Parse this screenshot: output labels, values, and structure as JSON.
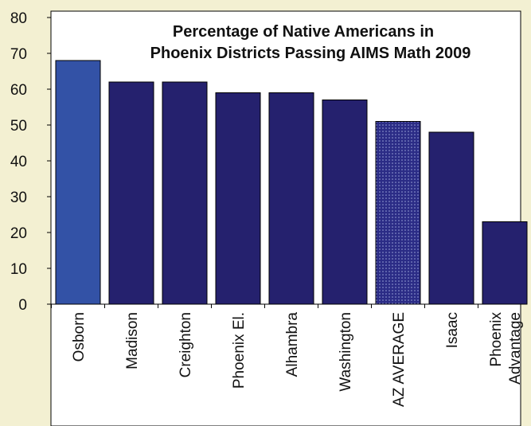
{
  "chart_data": {
    "type": "bar",
    "title_lines": [
      "Percentage of Native Americans in",
      "Phoenix Districts Passing AIMS Math 2009"
    ],
    "categories": [
      [
        "Osborn"
      ],
      [
        "Madison"
      ],
      [
        "Creighton"
      ],
      [
        "Phoenix El."
      ],
      [
        "Alhambra"
      ],
      [
        "Washington"
      ],
      [
        "AZ AVERAGE"
      ],
      [
        "Isaac"
      ],
      [
        "Phoenix",
        "Advantage"
      ]
    ],
    "values": [
      68,
      62,
      62,
      59,
      59,
      57,
      51,
      48,
      23
    ],
    "bar_styles": [
      "highlight",
      "normal",
      "normal",
      "normal",
      "normal",
      "normal",
      "dotted",
      "normal",
      "normal"
    ],
    "ylim": [
      0,
      80
    ],
    "yticks": [
      "0",
      "10",
      "20",
      "30",
      "40",
      "50",
      "60",
      "70",
      "80"
    ],
    "grid": false,
    "colors": {
      "bar": "#25216e",
      "highlight": "#3352a6",
      "dotted_base": "#2b2c86",
      "dotted_dot": "#9aa3d8",
      "plot_bg": "#ffffff",
      "frame_bg": "#f3f0d2",
      "axis": "#000000"
    }
  }
}
